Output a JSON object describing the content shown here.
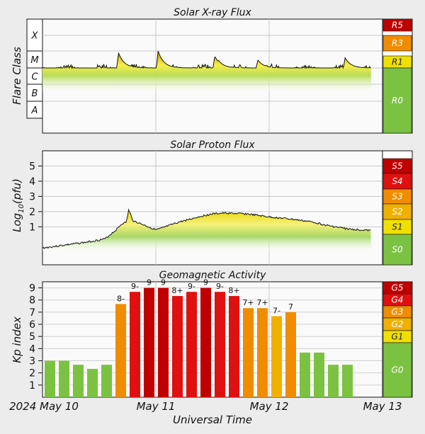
{
  "chart_data": [
    {
      "type": "area",
      "title": "Solar X-ray Flux",
      "ylabel": "Flare Class",
      "y_classes": [
        "X",
        "M",
        "C",
        "B",
        "A"
      ],
      "scale": [
        {
          "label": "R5",
          "color": "#c00000"
        },
        {
          "label": "R3",
          "color": "#f08c00"
        },
        {
          "label": "R1",
          "color": "#f0e000"
        },
        {
          "label": "R0",
          "color": "#7cc242"
        }
      ],
      "baseline_class": "C",
      "peaks": [
        {
          "x": 0.67,
          "class": "M8"
        },
        {
          "x": 1.02,
          "class": "X1"
        },
        {
          "x": 1.52,
          "class": "M5"
        },
        {
          "x": 1.55,
          "class": "M3"
        },
        {
          "x": 1.9,
          "class": "M3"
        },
        {
          "x": 2.13,
          "class": "M1"
        },
        {
          "x": 2.67,
          "class": "M4"
        },
        {
          "x": 2.75,
          "class": "M1"
        }
      ],
      "x_end": 2.9
    },
    {
      "type": "area",
      "title": "Solar Proton Flux",
      "ylabel": "Log10(pfu)",
      "yticks": [
        1,
        2,
        3,
        4,
        5
      ],
      "ylim": [
        -1.5,
        6
      ],
      "scale": [
        {
          "label": "S5",
          "color": "#c00000"
        },
        {
          "label": "S4",
          "color": "#e01010"
        },
        {
          "label": "S3",
          "color": "#f08c00"
        },
        {
          "label": "S2",
          "color": "#f0b000"
        },
        {
          "label": "S1",
          "color": "#f0e000"
        },
        {
          "label": "S0",
          "color": "#7cc242"
        }
      ],
      "x": [
        0,
        0.2,
        0.4,
        0.55,
        0.65,
        0.7,
        0.74,
        0.76,
        0.8,
        0.9,
        1.0,
        1.05,
        1.2,
        1.4,
        1.5,
        1.6,
        1.8,
        1.9,
        2.0,
        2.2,
        2.4,
        2.5,
        2.7,
        2.9
      ],
      "y": [
        -0.4,
        -0.2,
        0.0,
        0.2,
        0.8,
        1.2,
        1.3,
        2.1,
        1.4,
        1.1,
        0.8,
        0.9,
        1.3,
        1.7,
        1.85,
        1.9,
        1.85,
        1.75,
        1.65,
        1.5,
        1.3,
        1.1,
        0.85,
        0.75
      ]
    },
    {
      "type": "bar",
      "title": "Geomagnetic Activity",
      "ylabel": "Kp index",
      "yticks": [
        1,
        2,
        3,
        4,
        5,
        6,
        7,
        8,
        9
      ],
      "ylim": [
        0,
        9.5
      ],
      "scale": [
        {
          "label": "G5",
          "color": "#c00000"
        },
        {
          "label": "G4",
          "color": "#e01010"
        },
        {
          "label": "G3",
          "color": "#f08c00"
        },
        {
          "label": "G2",
          "color": "#f0b000"
        },
        {
          "label": "G1",
          "color": "#f0e000"
        },
        {
          "label": "G0",
          "color": "#7cc242"
        }
      ],
      "bars": [
        {
          "value": 3.0,
          "label": ""
        },
        {
          "value": 3.0,
          "label": ""
        },
        {
          "value": 2.67,
          "label": ""
        },
        {
          "value": 2.33,
          "label": ""
        },
        {
          "value": 2.67,
          "label": ""
        },
        {
          "value": 7.67,
          "label": "8-"
        },
        {
          "value": 8.67,
          "label": "9-"
        },
        {
          "value": 9.0,
          "label": "9"
        },
        {
          "value": 9.0,
          "label": "9"
        },
        {
          "value": 8.33,
          "label": "8+"
        },
        {
          "value": 8.67,
          "label": "9-"
        },
        {
          "value": 9.0,
          "label": "9"
        },
        {
          "value": 8.67,
          "label": "9-"
        },
        {
          "value": 8.33,
          "label": "8+"
        },
        {
          "value": 7.33,
          "label": "7+"
        },
        {
          "value": 7.33,
          "label": "7+"
        },
        {
          "value": 6.67,
          "label": "7-"
        },
        {
          "value": 7.0,
          "label": "7"
        },
        {
          "value": 3.67,
          "label": ""
        },
        {
          "value": 3.67,
          "label": ""
        },
        {
          "value": 2.67,
          "label": ""
        },
        {
          "value": 2.67,
          "label": ""
        },
        {
          "value": null,
          "label": ""
        },
        {
          "value": null,
          "label": ""
        }
      ]
    }
  ],
  "xaxis": {
    "ticks": [
      "2024 May 10",
      "May 11",
      "May 12",
      "May 13"
    ],
    "label": "Universal Time"
  }
}
